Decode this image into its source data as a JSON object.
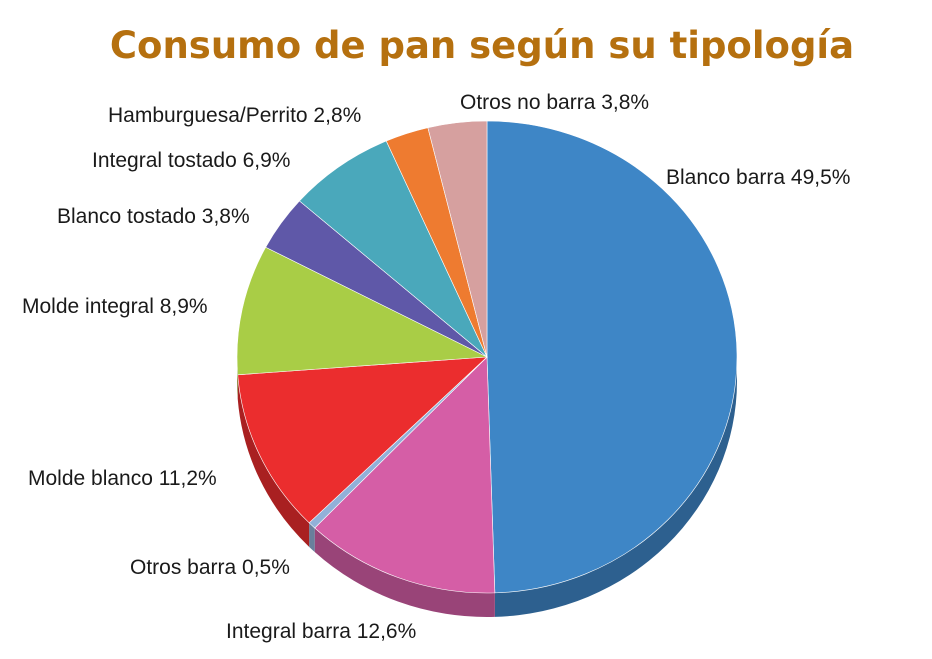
{
  "chart_data": {
    "type": "pie",
    "title": "Consumo de pan según su tipología",
    "title_color": "#b5700f",
    "slices": [
      {
        "label": "Blanco barra 49,5%",
        "value": 49.5,
        "color": "#3e86c6"
      },
      {
        "label": "Integral barra 12,6%",
        "value": 12.6,
        "color": "#d55ea6"
      },
      {
        "label": "Otros barra 0,5%",
        "value": 0.5,
        "color": "#92b0d8"
      },
      {
        "label": "Molde blanco 11,2%",
        "value": 11.2,
        "color": "#eb2d2e"
      },
      {
        "label": "Molde integral 8,9%",
        "value": 8.9,
        "color": "#a9cd46"
      },
      {
        "label": "Blanco tostado 3,8%",
        "value": 3.8,
        "color": "#5f58a8"
      },
      {
        "label": "Integral tostado 6,9%",
        "value": 6.9,
        "color": "#4aa8bb"
      },
      {
        "label": "Hamburguesa/Perrito 2,8%",
        "value": 2.8,
        "color": "#ee7b30"
      },
      {
        "label": "Otros no barra 3,8%",
        "value": 3.8,
        "color": "#d6a09f"
      }
    ]
  }
}
